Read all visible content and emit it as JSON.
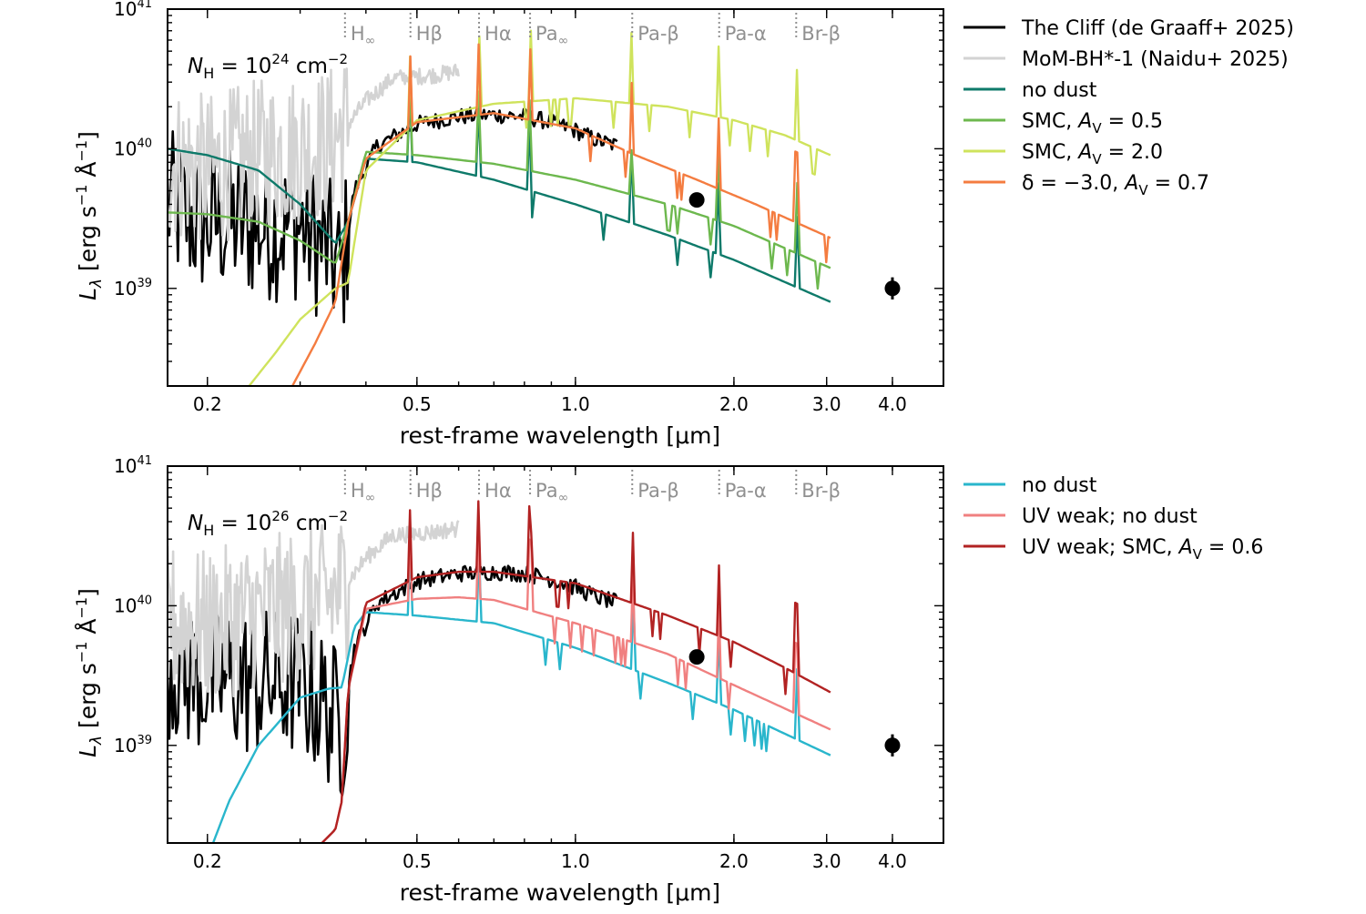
{
  "chart_data": [
    {
      "type": "line",
      "annotation": {
        "main": "N",
        "sub": "H",
        "eq": " = 10",
        "exp": "24",
        "unit": " cm",
        "unit_exp": "−2"
      },
      "xlabel": "rest-frame wavelength [μm]",
      "ylabel": "L_λ [erg s^-1 Å^-1]",
      "ylabel_parts": {
        "main": "L",
        "sub": "λ",
        "unit": " [erg s",
        "e1": "−1",
        "mid": " Å",
        "e2": "−1",
        "end": "]"
      },
      "xscale": "log",
      "yscale": "log",
      "xlim": [
        0.168,
        5.0
      ],
      "ylim": [
        2e+38,
        1e+41
      ],
      "xticks": [
        {
          "v": 0.2,
          "label": "0.2"
        },
        {
          "v": 0.5,
          "label": "0.5"
        },
        {
          "v": 1.0,
          "label": "1.0"
        },
        {
          "v": 2.0,
          "label": "2.0"
        },
        {
          "v": 3.0,
          "label": "3.0"
        },
        {
          "v": 4.0,
          "label": "4.0"
        }
      ],
      "yticks": [
        {
          "v": 1e+39,
          "base": "10",
          "exp": "39"
        },
        {
          "v": 1e+40,
          "base": "10",
          "exp": "40"
        },
        {
          "v": 1e+41,
          "base": "10",
          "exp": "41"
        }
      ],
      "lines": [
        {
          "label": "H∞",
          "x": 0.365
        },
        {
          "label": "Hβ",
          "x": 0.486
        },
        {
          "label": "Hα",
          "x": 0.656
        },
        {
          "label": "Pa∞",
          "x": 0.82
        },
        {
          "label": "Pa-β",
          "x": 1.282
        },
        {
          "label": "Pa-α",
          "x": 1.875
        },
        {
          "label": "Br-β",
          "x": 2.626
        }
      ],
      "series": [
        {
          "name": "The Cliff (de Graaff+ 2025)",
          "color": "#000000",
          "kind": "noisy",
          "x": [
            0.168,
            0.19,
            0.21,
            0.25,
            0.3,
            0.34,
            0.36,
            0.38,
            0.42,
            0.5,
            0.6,
            0.7,
            0.8,
            0.9,
            1.0,
            1.1,
            1.2
          ],
          "y": [
            4e+39,
            3e+39,
            3e+39,
            2.8e+39,
            2.8e+39,
            1.8e+39,
            1.3e+39,
            5e+39,
            1.05e+40,
            1.5e+40,
            1.7e+40,
            1.75e+40,
            1.7e+40,
            1.55e+40,
            1.35e+40,
            1.15e+40,
            1.05e+40
          ]
        },
        {
          "name": "MoM-BH*-1 (Naidu+ 2025)",
          "color": "#d3d3d3",
          "kind": "noisy",
          "x": [
            0.168,
            0.2,
            0.25,
            0.3,
            0.34,
            0.37,
            0.4,
            0.45,
            0.5,
            0.55,
            0.6
          ],
          "y": [
            8e+39,
            7e+39,
            9e+39,
            1e+40,
            1.1e+40,
            1.5e+40,
            2.2e+40,
            3.2e+40,
            3.3e+40,
            3.4e+40,
            3.6e+40
          ]
        },
        {
          "name": "no dust",
          "color": "#0e7a6a",
          "kind": "model",
          "x": [
            0.168,
            0.2,
            0.25,
            0.3,
            0.35,
            0.37,
            0.4,
            0.5,
            0.7,
            1.0,
            1.5,
            2.0,
            3.05
          ],
          "y": [
            1e+40,
            9e+39,
            7e+39,
            4e+39,
            2.1e+39,
            3e+39,
            8.5e+39,
            8e+39,
            6e+39,
            4e+39,
            2.4e+39,
            1.6e+39,
            8e+38
          ]
        },
        {
          "name": "SMC, A_V = 0.5",
          "legend": {
            "pre": "SMC, ",
            "main": "A",
            "sub": "V",
            "post": " = 0.5"
          },
          "color": "#6db84e",
          "kind": "model",
          "x": [
            0.168,
            0.2,
            0.25,
            0.3,
            0.35,
            0.37,
            0.4,
            0.5,
            0.7,
            1.0,
            1.5,
            2.0,
            3.05
          ],
          "y": [
            3.5e+39,
            3.4e+39,
            3e+39,
            2.2e+39,
            1.5e+39,
            3e+39,
            9.5e+39,
            9e+39,
            7.8e+39,
            6e+39,
            4e+39,
            2.8e+39,
            1.4e+39
          ]
        },
        {
          "name": "SMC, A_V = 2.0",
          "legend": {
            "pre": "SMC, ",
            "main": "A",
            "sub": "V",
            "post": " = 2.0"
          },
          "color": "#cfe35c",
          "kind": "model",
          "x": [
            0.24,
            0.27,
            0.3,
            0.35,
            0.37,
            0.4,
            0.5,
            0.7,
            1.0,
            1.5,
            2.0,
            2.5,
            3.05
          ],
          "y": [
            2e+38,
            3.5e+38,
            6e+38,
            1e+39,
            1.1e+39,
            7e+39,
            1.6e+40,
            2.1e+40,
            2.3e+40,
            2e+40,
            1.6e+40,
            1.25e+40,
            9e+39
          ]
        },
        {
          "name": "δ = −3.0, A_V = 0.7",
          "legend": {
            "pre": "δ = −3.0,  ",
            "main": "A",
            "sub": "V",
            "post": " = 0.7"
          },
          "color": "#f47c40",
          "kind": "model",
          "x": [
            0.29,
            0.32,
            0.35,
            0.37,
            0.4,
            0.5,
            0.7,
            1.0,
            1.3,
            1.7,
            2.2,
            3.05
          ],
          "y": [
            2e+38,
            4e+38,
            8e+38,
            3e+39,
            8.5e+39,
            1.55e+40,
            1.8e+40,
            1.4e+40,
            9e+39,
            6e+39,
            4e+39,
            2.3e+39
          ]
        }
      ],
      "points": [
        {
          "x": 1.7,
          "y": 4.3e+39,
          "err": 0
        },
        {
          "x": 4.0,
          "y": 1e+39,
          "err": 0.2
        }
      ],
      "legend_position": "outside right"
    },
    {
      "type": "line",
      "annotation": {
        "main": "N",
        "sub": "H",
        "eq": " = 10",
        "exp": "26",
        "unit": " cm",
        "unit_exp": "−2"
      },
      "xlabel": "rest-frame wavelength [μm]",
      "ylabel": "L_λ [erg s^-1 Å^-1]",
      "ylabel_parts": {
        "main": "L",
        "sub": "λ",
        "unit": " [erg s",
        "e1": "−1",
        "mid": " Å",
        "e2": "−1",
        "end": "]"
      },
      "xscale": "log",
      "yscale": "log",
      "xlim": [
        0.168,
        5.0
      ],
      "ylim": [
        2e+38,
        1e+41
      ],
      "xticks": [
        {
          "v": 0.2,
          "label": "0.2"
        },
        {
          "v": 0.5,
          "label": "0.5"
        },
        {
          "v": 1.0,
          "label": "1.0"
        },
        {
          "v": 2.0,
          "label": "2.0"
        },
        {
          "v": 3.0,
          "label": "3.0"
        },
        {
          "v": 4.0,
          "label": "4.0"
        }
      ],
      "yticks": [
        {
          "v": 1e+39,
          "base": "10",
          "exp": "39"
        },
        {
          "v": 1e+40,
          "base": "10",
          "exp": "40"
        },
        {
          "v": 1e+41,
          "base": "10",
          "exp": "41"
        }
      ],
      "lines": [
        {
          "label": "H∞",
          "x": 0.365
        },
        {
          "label": "Hβ",
          "x": 0.486
        },
        {
          "label": "Hα",
          "x": 0.656
        },
        {
          "label": "Pa∞",
          "x": 0.82
        },
        {
          "label": "Pa-β",
          "x": 1.282
        },
        {
          "label": "Pa-α",
          "x": 1.875
        },
        {
          "label": "Br-β",
          "x": 2.626
        }
      ],
      "series": [
        {
          "name": "The Cliff (de Graaff+ 2025)",
          "color": "#000000",
          "kind": "noisy",
          "legend_hidden": true,
          "x": [
            0.168,
            0.19,
            0.21,
            0.25,
            0.3,
            0.34,
            0.36,
            0.38,
            0.42,
            0.5,
            0.6,
            0.7,
            0.8,
            0.9,
            1.0,
            1.1,
            1.2
          ],
          "y": [
            4e+39,
            3e+39,
            3e+39,
            2.8e+39,
            2.8e+39,
            1.8e+39,
            1.3e+39,
            5e+39,
            1.05e+40,
            1.5e+40,
            1.7e+40,
            1.75e+40,
            1.7e+40,
            1.55e+40,
            1.35e+40,
            1.15e+40,
            1.05e+40
          ]
        },
        {
          "name": "MoM-BH*-1 (Naidu+ 2025)",
          "color": "#d3d3d3",
          "kind": "noisy",
          "legend_hidden": true,
          "x": [
            0.168,
            0.2,
            0.25,
            0.3,
            0.34,
            0.37,
            0.4,
            0.45,
            0.5,
            0.55,
            0.6
          ],
          "y": [
            8e+39,
            7e+39,
            9e+39,
            1e+40,
            1.1e+40,
            1.5e+40,
            2.2e+40,
            3.2e+40,
            3.3e+40,
            3.4e+40,
            3.6e+40
          ]
        },
        {
          "name": "no dust",
          "color": "#29b6cc",
          "kind": "model",
          "x": [
            0.205,
            0.22,
            0.25,
            0.3,
            0.34,
            0.36,
            0.38,
            0.4,
            0.5,
            0.7,
            1.0,
            1.5,
            2.0,
            3.05
          ],
          "y": [
            2e+38,
            4e+38,
            1e+39,
            2.2e+39,
            2.55e+39,
            2.6e+39,
            7e+39,
            9e+39,
            8.5e+39,
            7.5e+39,
            5e+39,
            2.8e+39,
            1.8e+39,
            8.5e+38
          ]
        },
        {
          "name": "UV weak; no dust",
          "color": "#f08080",
          "kind": "model",
          "x": [
            0.33,
            0.35,
            0.36,
            0.37,
            0.4,
            0.5,
            0.6,
            0.7,
            1.0,
            1.5,
            2.0,
            3.05
          ],
          "y": [
            2e+38,
            2.5e+38,
            4e+38,
            2.5e+39,
            9.5e+39,
            1.12e+40,
            1.15e+40,
            1.1e+40,
            7.5e+39,
            4.5e+39,
            2.7e+39,
            1.3e+39
          ]
        },
        {
          "name": "UV weak; SMC, A_V = 0.6",
          "legend": {
            "pre": "UV weak; SMC, ",
            "main": "A",
            "sub": "V",
            "post": " = 0.6"
          },
          "color": "#b22222",
          "kind": "model",
          "x": [
            0.33,
            0.35,
            0.36,
            0.37,
            0.4,
            0.5,
            0.6,
            0.7,
            1.0,
            1.5,
            2.0,
            2.5,
            3.05
          ],
          "y": [
            2e+38,
            2.5e+38,
            4e+38,
            2.5e+39,
            1.05e+40,
            1.6e+40,
            1.75e+40,
            1.75e+40,
            1.45e+40,
            8.5e+39,
            5.5e+39,
            3.6e+39,
            2.4e+39
          ]
        }
      ],
      "points": [
        {
          "x": 1.7,
          "y": 4.3e+39,
          "err": 0
        },
        {
          "x": 4.0,
          "y": 1e+39,
          "err": 0.2
        }
      ],
      "legend_position": "outside right"
    }
  ]
}
